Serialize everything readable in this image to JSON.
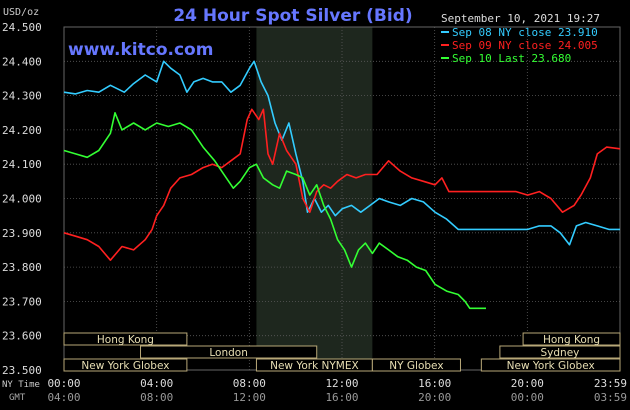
{
  "chart_data": {
    "type": "line",
    "title": "24 Hour Spot Silver (Bid)",
    "watermark": "www.kitco.com",
    "date_label": "September 10, 2021 19:27",
    "y_unit_label": "USD/oz",
    "ylim": [
      23.5,
      24.5
    ],
    "y_ticks": [
      "24.500",
      "24.400",
      "24.300",
      "24.200",
      "24.100",
      "24.000",
      "23.900",
      "23.800",
      "23.700",
      "23.600",
      "23.500"
    ],
    "x_tick_labels_ny": [
      "00:00",
      "04:00",
      "08:00",
      "12:00",
      "16:00",
      "20:00",
      "23:59"
    ],
    "x_tick_labels_gmt": [
      "04:00",
      "08:00",
      "12:00",
      "16:00",
      "20:00",
      "00:00",
      "03:59"
    ],
    "x_axis_row1_label": "NY Time",
    "x_axis_row2_label": "GMT",
    "xlim_hours": [
      0,
      23.98
    ],
    "shaded_session_hours": [
      8.3,
      13.3
    ],
    "grid": true,
    "legend_placement": "top-right",
    "series": [
      {
        "name": "Sep 08 NY close 23.910",
        "color": "#33ccff",
        "points": [
          [
            0.0,
            24.31
          ],
          [
            0.5,
            24.305
          ],
          [
            1.0,
            24.315
          ],
          [
            1.5,
            24.31
          ],
          [
            2.0,
            24.33
          ],
          [
            2.6,
            24.31
          ],
          [
            3.0,
            24.335
          ],
          [
            3.5,
            24.36
          ],
          [
            4.0,
            24.34
          ],
          [
            4.3,
            24.4
          ],
          [
            4.6,
            24.38
          ],
          [
            5.0,
            24.36
          ],
          [
            5.3,
            24.31
          ],
          [
            5.6,
            24.34
          ],
          [
            6.0,
            24.35
          ],
          [
            6.4,
            24.34
          ],
          [
            6.8,
            24.34
          ],
          [
            7.2,
            24.31
          ],
          [
            7.6,
            24.33
          ],
          [
            8.0,
            24.38
          ],
          [
            8.2,
            24.4
          ],
          [
            8.5,
            24.34
          ],
          [
            8.8,
            24.3
          ],
          [
            9.1,
            24.22
          ],
          [
            9.4,
            24.17
          ],
          [
            9.7,
            24.22
          ],
          [
            10.0,
            24.13
          ],
          [
            10.3,
            24.05
          ],
          [
            10.5,
            23.96
          ],
          [
            10.8,
            24.0
          ],
          [
            11.1,
            23.96
          ],
          [
            11.4,
            23.98
          ],
          [
            11.7,
            23.95
          ],
          [
            12.0,
            23.97
          ],
          [
            12.4,
            23.98
          ],
          [
            12.8,
            23.96
          ],
          [
            13.2,
            23.98
          ],
          [
            13.6,
            24.0
          ],
          [
            14.0,
            23.99
          ],
          [
            14.5,
            23.98
          ],
          [
            15.0,
            24.0
          ],
          [
            15.5,
            23.99
          ],
          [
            16.0,
            23.96
          ],
          [
            16.5,
            23.94
          ],
          [
            17.0,
            23.91
          ],
          [
            17.5,
            23.91
          ],
          [
            18.0,
            23.91
          ],
          [
            18.5,
            23.91
          ],
          [
            19.0,
            23.91
          ],
          [
            19.5,
            23.91
          ],
          [
            20.0,
            23.91
          ],
          [
            20.5,
            23.92
          ],
          [
            21.0,
            23.92
          ],
          [
            21.4,
            23.9
          ],
          [
            21.8,
            23.865
          ],
          [
            22.1,
            23.92
          ],
          [
            22.5,
            23.93
          ],
          [
            23.0,
            23.92
          ],
          [
            23.5,
            23.91
          ],
          [
            23.98,
            23.91
          ]
        ]
      },
      {
        "name": "Sep 09 NY close 24.005",
        "color": "#ff2020",
        "points": [
          [
            0.0,
            23.9
          ],
          [
            0.5,
            23.89
          ],
          [
            1.0,
            23.88
          ],
          [
            1.5,
            23.86
          ],
          [
            2.0,
            23.82
          ],
          [
            2.5,
            23.86
          ],
          [
            3.0,
            23.85
          ],
          [
            3.5,
            23.88
          ],
          [
            3.8,
            23.91
          ],
          [
            4.0,
            23.95
          ],
          [
            4.3,
            23.98
          ],
          [
            4.6,
            24.03
          ],
          [
            5.0,
            24.06
          ],
          [
            5.5,
            24.07
          ],
          [
            6.0,
            24.09
          ],
          [
            6.4,
            24.1
          ],
          [
            6.8,
            24.09
          ],
          [
            7.2,
            24.11
          ],
          [
            7.6,
            24.13
          ],
          [
            7.9,
            24.23
          ],
          [
            8.1,
            24.26
          ],
          [
            8.4,
            24.23
          ],
          [
            8.6,
            24.26
          ],
          [
            8.8,
            24.13
          ],
          [
            9.0,
            24.1
          ],
          [
            9.3,
            24.19
          ],
          [
            9.6,
            24.14
          ],
          [
            10.0,
            24.1
          ],
          [
            10.3,
            24.0
          ],
          [
            10.6,
            23.96
          ],
          [
            10.9,
            24.02
          ],
          [
            11.2,
            24.04
          ],
          [
            11.5,
            24.03
          ],
          [
            11.8,
            24.05
          ],
          [
            12.2,
            24.07
          ],
          [
            12.6,
            24.06
          ],
          [
            13.0,
            24.07
          ],
          [
            13.5,
            24.07
          ],
          [
            14.0,
            24.11
          ],
          [
            14.5,
            24.08
          ],
          [
            15.0,
            24.06
          ],
          [
            15.5,
            24.05
          ],
          [
            16.0,
            24.04
          ],
          [
            16.3,
            24.06
          ],
          [
            16.6,
            24.02
          ],
          [
            17.0,
            24.02
          ],
          [
            17.5,
            24.02
          ],
          [
            18.0,
            24.02
          ],
          [
            18.5,
            24.02
          ],
          [
            19.0,
            24.02
          ],
          [
            19.5,
            24.02
          ],
          [
            20.0,
            24.01
          ],
          [
            20.5,
            24.02
          ],
          [
            21.0,
            24.0
          ],
          [
            21.5,
            23.96
          ],
          [
            22.0,
            23.98
          ],
          [
            22.3,
            24.01
          ],
          [
            22.7,
            24.06
          ],
          [
            23.0,
            24.13
          ],
          [
            23.4,
            24.15
          ],
          [
            23.98,
            24.145
          ]
        ]
      },
      {
        "name": "Sep 10 Last 23.680",
        "color": "#33ff33",
        "points": [
          [
            0.0,
            24.14
          ],
          [
            0.5,
            24.13
          ],
          [
            1.0,
            24.12
          ],
          [
            1.5,
            24.14
          ],
          [
            2.0,
            24.19
          ],
          [
            2.2,
            24.25
          ],
          [
            2.5,
            24.2
          ],
          [
            3.0,
            24.22
          ],
          [
            3.5,
            24.2
          ],
          [
            4.0,
            24.22
          ],
          [
            4.5,
            24.21
          ],
          [
            5.0,
            24.22
          ],
          [
            5.5,
            24.2
          ],
          [
            6.0,
            24.15
          ],
          [
            6.5,
            24.11
          ],
          [
            7.0,
            24.06
          ],
          [
            7.3,
            24.03
          ],
          [
            7.6,
            24.05
          ],
          [
            8.0,
            24.09
          ],
          [
            8.3,
            24.1
          ],
          [
            8.6,
            24.06
          ],
          [
            9.0,
            24.04
          ],
          [
            9.3,
            24.03
          ],
          [
            9.6,
            24.08
          ],
          [
            10.0,
            24.07
          ],
          [
            10.3,
            24.06
          ],
          [
            10.6,
            24.01
          ],
          [
            10.9,
            24.04
          ],
          [
            11.2,
            23.98
          ],
          [
            11.5,
            23.94
          ],
          [
            11.8,
            23.88
          ],
          [
            12.1,
            23.85
          ],
          [
            12.4,
            23.8
          ],
          [
            12.7,
            23.85
          ],
          [
            13.0,
            23.87
          ],
          [
            13.3,
            23.84
          ],
          [
            13.6,
            23.87
          ],
          [
            14.0,
            23.85
          ],
          [
            14.4,
            23.83
          ],
          [
            14.8,
            23.82
          ],
          [
            15.2,
            23.8
          ],
          [
            15.6,
            23.79
          ],
          [
            16.0,
            23.75
          ],
          [
            16.5,
            23.73
          ],
          [
            17.0,
            23.72
          ],
          [
            17.3,
            23.7
          ],
          [
            17.5,
            23.68
          ],
          [
            18.2,
            23.68
          ]
        ]
      }
    ],
    "markets": [
      {
        "label": "Hong Kong",
        "start_hour": 0,
        "end_hour": 5.3,
        "row": 0
      },
      {
        "label": "London",
        "start_hour": 3.3,
        "end_hour": 10.9,
        "row": 1
      },
      {
        "label": "New York Globex",
        "start_hour": 0,
        "end_hour": 5.3,
        "row": 2
      },
      {
        "label": "New York NYMEX",
        "start_hour": 8.3,
        "end_hour": 13.3,
        "row": 2
      },
      {
        "label": "NY Globex",
        "start_hour": 13.3,
        "end_hour": 17.1,
        "row": 2
      },
      {
        "label": "Hong Kong",
        "start_hour": 19.8,
        "end_hour": 23.98,
        "row": 0
      },
      {
        "label": "Sydney",
        "start_hour": 18.8,
        "end_hour": 23.98,
        "row": 1
      },
      {
        "label": "New York Globex",
        "start_hour": 18.0,
        "end_hour": 23.98,
        "row": 2
      }
    ]
  }
}
